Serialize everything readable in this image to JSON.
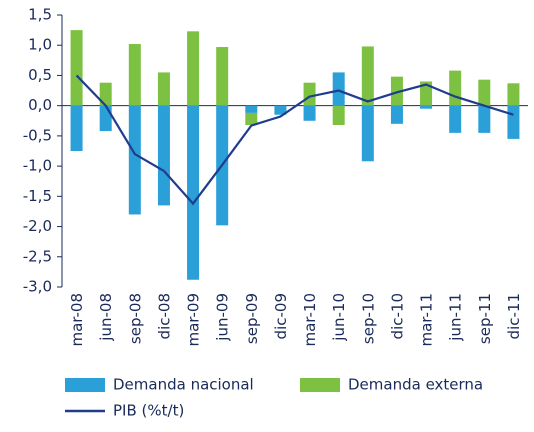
{
  "chart_data": {
    "type": "bar-line",
    "categories": [
      "mar-08",
      "jun-08",
      "sep-08",
      "dic-08",
      "mar-09",
      "jun-09",
      "sep-09",
      "dic-09",
      "mar-10",
      "jun-10",
      "sep-10",
      "dic-10",
      "mar-11",
      "jun-11",
      "sep-11",
      "dic-11"
    ],
    "series": [
      {
        "name": "Demanda nacional",
        "color": "#2a9fd8",
        "type": "bar",
        "values": [
          -0.75,
          -0.42,
          -1.8,
          -1.65,
          -2.88,
          -1.98,
          -0.12,
          -0.15,
          -0.25,
          0.55,
          -0.92,
          -0.3,
          -0.05,
          -0.45,
          -0.45,
          -0.55
        ]
      },
      {
        "name": "Demanda externa",
        "color": "#7dc142",
        "type": "bar",
        "values": [
          1.25,
          0.38,
          1.02,
          0.55,
          1.23,
          0.97,
          -0.2,
          0,
          0.38,
          -0.32,
          0.98,
          0.48,
          0.4,
          0.58,
          0.43,
          0.37
        ]
      },
      {
        "name": "PIB (%t/t)",
        "color": "#1f3d8c",
        "type": "line",
        "values": [
          0.5,
          0.0,
          -0.8,
          -1.08,
          -1.62,
          -0.98,
          -0.33,
          -0.18,
          0.15,
          0.25,
          0.07,
          0.22,
          0.35,
          0.15,
          0.0,
          -0.15
        ]
      }
    ],
    "ylim": [
      -3.0,
      1.5
    ],
    "yticks": [
      {
        "value": 1.5,
        "label": "1,5"
      },
      {
        "value": 1.0,
        "label": "1,0"
      },
      {
        "value": 0.5,
        "label": "0,5"
      },
      {
        "value": 0.0,
        "label": "0,0"
      },
      {
        "value": -0.5,
        "label": "-0,5"
      },
      {
        "value": -1.0,
        "label": "-1,0"
      },
      {
        "value": -1.5,
        "label": "-1,5"
      },
      {
        "value": -2.0,
        "label": "-2,0"
      },
      {
        "value": -2.5,
        "label": "-2,5"
      },
      {
        "value": -3.0,
        "label": "-3,0"
      }
    ]
  }
}
